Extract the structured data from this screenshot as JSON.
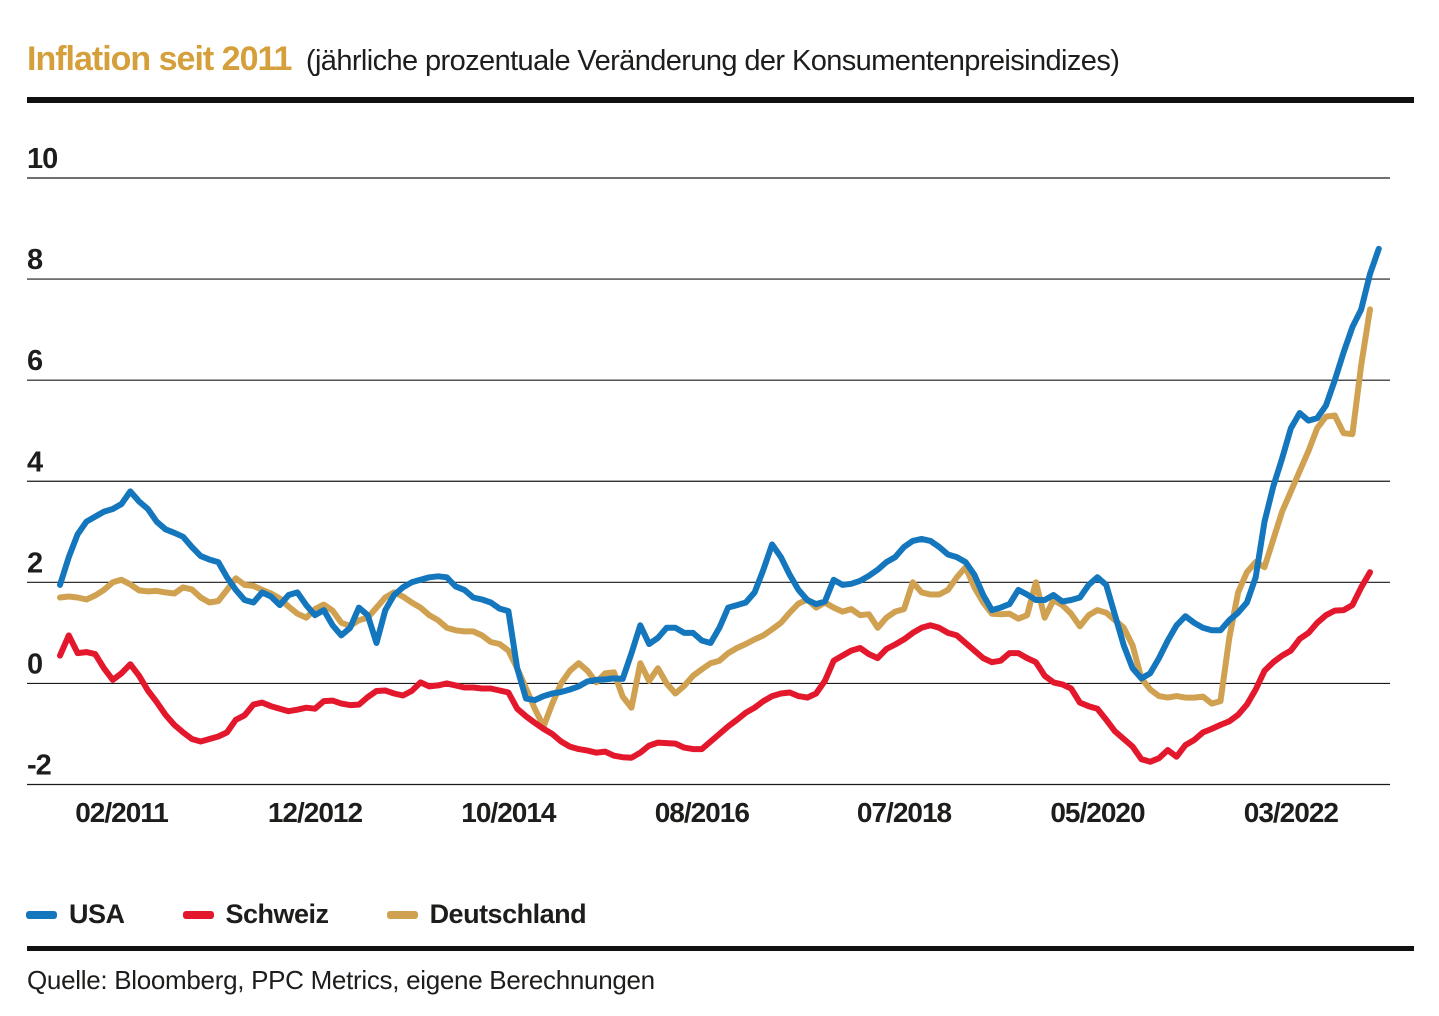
{
  "title": {
    "main": "Inflation seit 2011",
    "main_color": "#D5A03C",
    "subtitle": "(jährliche prozentuale Veränderung der Konsumentenpreisindizes)"
  },
  "source": "Quelle: Bloomberg, PPC Metrics, eigene Berechnungen",
  "legend": [
    {
      "label": "USA",
      "color": "#1477BD"
    },
    {
      "label": "Schweiz",
      "color": "#E4182C"
    },
    {
      "label": "Deutschland",
      "color": "#D0A151"
    }
  ],
  "chart_data": {
    "type": "line",
    "title": "Inflation seit 2011 (jährliche prozentuale Veränderung der Konsumentenpreisindizes)",
    "xlabel": "",
    "ylabel": "",
    "x_unit": "month",
    "x_start_month": "2010-07",
    "x_end_month": "2022-12",
    "x_tick_labels": [
      "02/2011",
      "12/2012",
      "10/2014",
      "08/2016",
      "07/2018",
      "05/2020",
      "03/2022"
    ],
    "x_tick_indices": [
      7,
      29,
      51,
      73,
      96,
      118,
      140
    ],
    "y_ticks": [
      10,
      8,
      6,
      4,
      2,
      0,
      -2
    ],
    "ylim": [
      -2.4,
      10
    ],
    "grid": true,
    "legend_position": "bottom",
    "series": [
      {
        "name": "Deutschland",
        "color": "#D0A151",
        "values": [
          1.7,
          1.72,
          1.7,
          1.66,
          1.74,
          1.85,
          2.0,
          2.05,
          1.96,
          1.84,
          1.82,
          1.83,
          1.8,
          1.78,
          1.9,
          1.86,
          1.7,
          1.6,
          1.63,
          1.85,
          2.08,
          1.95,
          1.93,
          1.85,
          1.78,
          1.68,
          1.52,
          1.38,
          1.3,
          1.47,
          1.56,
          1.44,
          1.2,
          1.14,
          1.25,
          1.3,
          1.5,
          1.7,
          1.8,
          1.72,
          1.6,
          1.5,
          1.35,
          1.25,
          1.1,
          1.05,
          1.03,
          1.03,
          0.95,
          0.82,
          0.78,
          0.65,
          0.3,
          -0.1,
          -0.5,
          -0.85,
          -0.4,
          0.0,
          0.25,
          0.4,
          0.25,
          0.02,
          0.2,
          0.22,
          -0.26,
          -0.48,
          0.4,
          0.05,
          0.3,
          0.0,
          -0.2,
          -0.05,
          0.15,
          0.28,
          0.4,
          0.45,
          0.6,
          0.7,
          0.78,
          0.87,
          0.95,
          1.07,
          1.2,
          1.4,
          1.58,
          1.66,
          1.5,
          1.6,
          1.5,
          1.42,
          1.47,
          1.35,
          1.37,
          1.1,
          1.3,
          1.42,
          1.47,
          2.0,
          1.8,
          1.76,
          1.76,
          1.85,
          2.1,
          2.3,
          1.9,
          1.6,
          1.38,
          1.37,
          1.38,
          1.28,
          1.35,
          2.0,
          1.3,
          1.65,
          1.55,
          1.38,
          1.13,
          1.35,
          1.45,
          1.4,
          1.25,
          1.1,
          0.75,
          0.1,
          -0.12,
          -0.25,
          -0.28,
          -0.25,
          -0.28,
          -0.28,
          -0.26,
          -0.4,
          -0.35,
          0.9,
          1.8,
          2.2,
          2.4,
          2.3,
          2.85,
          3.4,
          3.8,
          4.2,
          4.6,
          5.05,
          5.28,
          5.3,
          4.95,
          4.93,
          6.3,
          7.4
        ]
      },
      {
        "name": "Schweiz",
        "color": "#E4182C",
        "values": [
          0.55,
          0.95,
          0.6,
          0.62,
          0.58,
          0.3,
          0.07,
          0.2,
          0.38,
          0.15,
          -0.14,
          -0.37,
          -0.62,
          -0.82,
          -0.97,
          -1.1,
          -1.15,
          -1.1,
          -1.05,
          -0.97,
          -0.72,
          -0.63,
          -0.42,
          -0.38,
          -0.45,
          -0.5,
          -0.55,
          -0.52,
          -0.48,
          -0.5,
          -0.35,
          -0.34,
          -0.4,
          -0.43,
          -0.42,
          -0.27,
          -0.15,
          -0.14,
          -0.2,
          -0.24,
          -0.15,
          0.02,
          -0.06,
          -0.04,
          0.0,
          -0.04,
          -0.08,
          -0.08,
          -0.1,
          -0.1,
          -0.14,
          -0.18,
          -0.5,
          -0.65,
          -0.78,
          -0.9,
          -1.0,
          -1.15,
          -1.25,
          -1.3,
          -1.33,
          -1.37,
          -1.35,
          -1.43,
          -1.46,
          -1.47,
          -1.37,
          -1.23,
          -1.17,
          -1.18,
          -1.19,
          -1.27,
          -1.3,
          -1.3,
          -1.15,
          -1.0,
          -0.85,
          -0.72,
          -0.58,
          -0.48,
          -0.35,
          -0.25,
          -0.2,
          -0.18,
          -0.25,
          -0.28,
          -0.2,
          0.05,
          0.45,
          0.55,
          0.65,
          0.7,
          0.58,
          0.5,
          0.68,
          0.77,
          0.87,
          1.0,
          1.1,
          1.15,
          1.1,
          1.0,
          0.95,
          0.8,
          0.65,
          0.5,
          0.42,
          0.45,
          0.6,
          0.6,
          0.5,
          0.42,
          0.15,
          0.02,
          -0.02,
          -0.1,
          -0.38,
          -0.45,
          -0.5,
          -0.72,
          -0.95,
          -1.1,
          -1.25,
          -1.5,
          -1.55,
          -1.48,
          -1.32,
          -1.45,
          -1.22,
          -1.12,
          -0.97,
          -0.9,
          -0.82,
          -0.75,
          -0.62,
          -0.42,
          -0.12,
          0.25,
          0.42,
          0.55,
          0.65,
          0.88,
          1.0,
          1.2,
          1.35,
          1.44,
          1.45,
          1.55,
          1.9,
          2.2
        ]
      },
      {
        "name": "USA",
        "color": "#1477BD",
        "values": [
          1.95,
          2.5,
          2.95,
          3.2,
          3.3,
          3.4,
          3.45,
          3.55,
          3.8,
          3.6,
          3.45,
          3.2,
          3.05,
          2.98,
          2.9,
          2.7,
          2.52,
          2.45,
          2.4,
          2.1,
          1.85,
          1.65,
          1.6,
          1.8,
          1.72,
          1.55,
          1.75,
          1.8,
          1.55,
          1.35,
          1.45,
          1.15,
          0.95,
          1.1,
          1.5,
          1.35,
          0.8,
          1.45,
          1.75,
          1.9,
          2.0,
          2.05,
          2.1,
          2.12,
          2.1,
          1.92,
          1.85,
          1.7,
          1.66,
          1.6,
          1.48,
          1.43,
          0.3,
          -0.3,
          -0.33,
          -0.25,
          -0.2,
          -0.17,
          -0.12,
          -0.06,
          0.04,
          0.07,
          0.08,
          0.1,
          0.09,
          0.6,
          1.15,
          0.78,
          0.9,
          1.1,
          1.1,
          1.0,
          1.0,
          0.85,
          0.8,
          1.1,
          1.5,
          1.55,
          1.6,
          1.8,
          2.25,
          2.75,
          2.5,
          2.15,
          1.85,
          1.65,
          1.57,
          1.62,
          2.05,
          1.95,
          1.97,
          2.03,
          2.13,
          2.25,
          2.4,
          2.5,
          2.7,
          2.82,
          2.86,
          2.82,
          2.7,
          2.55,
          2.5,
          2.4,
          2.15,
          1.75,
          1.45,
          1.5,
          1.57,
          1.85,
          1.76,
          1.65,
          1.65,
          1.75,
          1.62,
          1.65,
          1.7,
          1.95,
          2.1,
          1.95,
          1.35,
          0.75,
          0.3,
          0.1,
          0.2,
          0.5,
          0.85,
          1.15,
          1.33,
          1.2,
          1.1,
          1.05,
          1.05,
          1.25,
          1.4,
          1.6,
          2.1,
          3.2,
          3.9,
          4.45,
          5.05,
          5.35,
          5.2,
          5.25,
          5.5,
          6.0,
          6.55,
          7.05,
          7.4,
          8.1,
          8.6
        ]
      }
    ]
  }
}
